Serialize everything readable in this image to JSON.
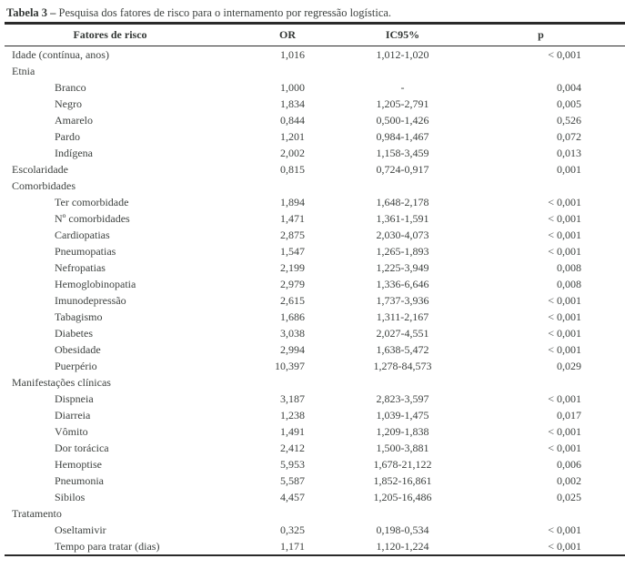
{
  "title": {
    "label": "Tabela 3 –",
    "text": "Pesquisa dos fatores de risco para o internamento por regressão logística."
  },
  "table": {
    "headers": [
      "Fatores de risco",
      "OR",
      "IC95%",
      "p"
    ],
    "rows": [
      {
        "type": "data",
        "indent": 0,
        "factor": "Idade (contínua, anos)",
        "or": "1,016",
        "ic": "1,012-1,020",
        "p": "< 0,001"
      },
      {
        "type": "group",
        "factor": "Etnia"
      },
      {
        "type": "data",
        "indent": 1,
        "factor": "Branco",
        "or": "1,000",
        "ic": "-",
        "p": "0,004"
      },
      {
        "type": "data",
        "indent": 1,
        "factor": "Negro",
        "or": "1,834",
        "ic": "1,205-2,791",
        "p": "0,005"
      },
      {
        "type": "data",
        "indent": 1,
        "factor": "Amarelo",
        "or": "0,844",
        "ic": "0,500-1,426",
        "p": "0,526"
      },
      {
        "type": "data",
        "indent": 1,
        "factor": "Pardo",
        "or": "1,201",
        "ic": "0,984-1,467",
        "p": "0,072"
      },
      {
        "type": "data",
        "indent": 1,
        "factor": "Indígena",
        "or": "2,002",
        "ic": "1,158-3,459",
        "p": "0,013"
      },
      {
        "type": "data",
        "indent": 0,
        "factor": "Escolaridade",
        "or": "0,815",
        "ic": "0,724-0,917",
        "p": "0,001"
      },
      {
        "type": "group",
        "factor": "Comorbidades"
      },
      {
        "type": "data",
        "indent": 1,
        "factor": "Ter comorbidade",
        "or": "1,894",
        "ic": "1,648-2,178",
        "p": "< 0,001"
      },
      {
        "type": "data",
        "indent": 1,
        "factor": "Nº comorbidades",
        "or": "1,471",
        "ic": "1,361-1,591",
        "p": "< 0,001"
      },
      {
        "type": "data",
        "indent": 1,
        "factor": "Cardiopatias",
        "or": "2,875",
        "ic": "2,030-4,073",
        "p": "< 0,001"
      },
      {
        "type": "data",
        "indent": 1,
        "factor": "Pneumopatias",
        "or": "1,547",
        "ic": "1,265-1,893",
        "p": "< 0,001"
      },
      {
        "type": "data",
        "indent": 1,
        "factor": "Nefropatias",
        "or": "2,199",
        "ic": "1,225-3,949",
        "p": "0,008"
      },
      {
        "type": "data",
        "indent": 1,
        "factor": "Hemoglobinopatia",
        "or": "2,979",
        "ic": "1,336-6,646",
        "p": "0,008"
      },
      {
        "type": "data",
        "indent": 1,
        "factor": "Imunodepressão",
        "or": "2,615",
        "ic": "1,737-3,936",
        "p": "< 0,001"
      },
      {
        "type": "data",
        "indent": 1,
        "factor": "Tabagismo",
        "or": "1,686",
        "ic": "1,311-2,167",
        "p": "< 0,001"
      },
      {
        "type": "data",
        "indent": 1,
        "factor": "Diabetes",
        "or": "3,038",
        "ic": "2,027-4,551",
        "p": "< 0,001"
      },
      {
        "type": "data",
        "indent": 1,
        "factor": "Obesidade",
        "or": "2,994",
        "ic": "1,638-5,472",
        "p": "< 0,001"
      },
      {
        "type": "data",
        "indent": 1,
        "factor": "Puerpério",
        "or": "10,397",
        "ic": "1,278-84,573",
        "p": "0,029"
      },
      {
        "type": "group",
        "factor": "Manifestações clínicas"
      },
      {
        "type": "data",
        "indent": 1,
        "factor": "Dispneia",
        "or": "3,187",
        "ic": "2,823-3,597",
        "p": "< 0,001"
      },
      {
        "type": "data",
        "indent": 1,
        "factor": "Diarreia",
        "or": "1,238",
        "ic": "1,039-1,475",
        "p": "0,017"
      },
      {
        "type": "data",
        "indent": 1,
        "factor": "Vômito",
        "or": "1,491",
        "ic": "1,209-1,838",
        "p": "< 0,001"
      },
      {
        "type": "data",
        "indent": 1,
        "factor": "Dor torácica",
        "or": "2,412",
        "ic": "1,500-3,881",
        "p": "< 0,001"
      },
      {
        "type": "data",
        "indent": 1,
        "factor": "Hemoptise",
        "or": "5,953",
        "ic": "1,678-21,122",
        "p": "0,006"
      },
      {
        "type": "data",
        "indent": 1,
        "factor": "Pneumonia",
        "or": "5,587",
        "ic": "1,852-16,861",
        "p": "0,002"
      },
      {
        "type": "data",
        "indent": 1,
        "factor": "Sibilos",
        "or": "4,457",
        "ic": "1,205-16,486",
        "p": "0,025"
      },
      {
        "type": "group",
        "factor": "Tratamento"
      },
      {
        "type": "data",
        "indent": 1,
        "factor": "Oseltamivir",
        "or": "0,325",
        "ic": "0,198-0,534",
        "p": "< 0,001"
      },
      {
        "type": "data",
        "indent": 1,
        "factor": "Tempo para tratar (dias)",
        "or": "1,171",
        "ic": "1,120-1,224",
        "p": "< 0,001"
      }
    ]
  }
}
